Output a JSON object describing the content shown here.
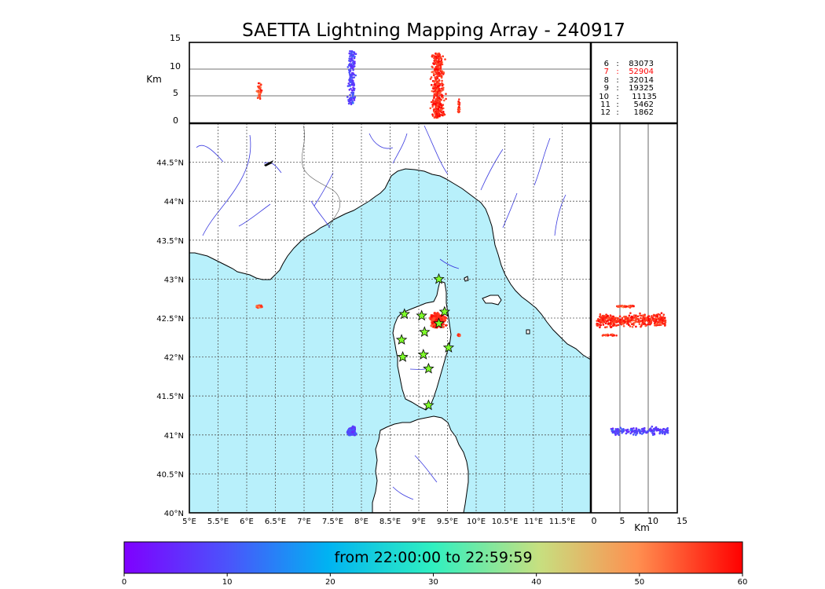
{
  "title": "SAETTA Lightning Mapping Array - 240917",
  "colors": {
    "sea": "#b8f0fb",
    "land": "#ffffff",
    "rivers": "#3a3adf",
    "borders": "#555555",
    "grid": "#555555",
    "star_fill": "#7fff2a",
    "highlight": "#ff0000"
  },
  "map": {
    "lon_range": [
      5.0,
      12.0
    ],
    "lat_range": [
      40.0,
      45.0
    ],
    "lon_ticks": [
      "5°E",
      "5.5°E",
      "6°E",
      "6.5°E",
      "7°E",
      "7.5°E",
      "8°E",
      "8.5°E",
      "9°E",
      "9.5°E",
      "10°E",
      "10.5°E",
      "11°E",
      "11.5°E"
    ],
    "lat_ticks": [
      "40°N",
      "40.5°N",
      "41°N",
      "41.5°N",
      "42°N",
      "42.5°N",
      "43°N",
      "43.5°N",
      "44°N",
      "44.5°N"
    ]
  },
  "altitude_panel": {
    "unit_label": "Km",
    "ticks": [
      "0",
      "5",
      "10",
      "15"
    ],
    "range": [
      0,
      15
    ]
  },
  "side_panel": {
    "unit_label": "Km",
    "ticks": [
      "0",
      "5",
      "10",
      "15"
    ]
  },
  "stats": [
    {
      "label": "6",
      "sep": ":",
      "value": "83073",
      "highlight": false
    },
    {
      "label": "7",
      "sep": ":",
      "value": "52904",
      "highlight": true
    },
    {
      "label": "8",
      "sep": ":",
      "value": "32014",
      "highlight": false
    },
    {
      "label": "9",
      "sep": ":",
      "value": "19325",
      "highlight": false
    },
    {
      "label": "10",
      "sep": ":",
      "value": "11135",
      "highlight": false
    },
    {
      "label": "11",
      "sep": ":",
      "value": "5462",
      "highlight": false
    },
    {
      "label": "12",
      "sep": ":",
      "value": "1862",
      "highlight": false
    }
  ],
  "stations": [
    {
      "lon": 9.35,
      "lat": 43.0
    },
    {
      "lon": 8.75,
      "lat": 42.55
    },
    {
      "lon": 9.05,
      "lat": 42.53
    },
    {
      "lon": 9.45,
      "lat": 42.58
    },
    {
      "lon": 9.35,
      "lat": 42.43
    },
    {
      "lon": 9.1,
      "lat": 42.32
    },
    {
      "lon": 8.7,
      "lat": 42.22
    },
    {
      "lon": 8.72,
      "lat": 42.0
    },
    {
      "lon": 9.08,
      "lat": 42.03
    },
    {
      "lon": 9.52,
      "lat": 42.12
    },
    {
      "lon": 9.17,
      "lat": 41.85
    },
    {
      "lon": 9.17,
      "lat": 41.38
    }
  ],
  "lightning_clusters": [
    {
      "lon": 6.22,
      "lat": 42.65,
      "spread_lon": 0.07,
      "spread_lat": 0.02,
      "alt": [
        4.5,
        7.5
      ],
      "time": 55,
      "n": 40
    },
    {
      "lon": 7.83,
      "lat": 41.05,
      "spread_lon": 0.1,
      "spread_lat": 0.08,
      "alt": [
        3.5,
        13.5
      ],
      "time": 8,
      "n": 160
    },
    {
      "lon": 9.33,
      "lat": 42.47,
      "spread_lon": 0.17,
      "spread_lat": 0.13,
      "alt": [
        1.0,
        13.0
      ],
      "time": 57,
      "n": 420
    },
    {
      "lon": 9.7,
      "lat": 42.28,
      "spread_lon": 0.03,
      "spread_lat": 0.02,
      "alt": [
        2.0,
        4.5
      ],
      "time": 56,
      "n": 25
    }
  ],
  "colorbar": {
    "label": "from 22:00:00 to 22:59:59",
    "range": [
      0,
      60
    ],
    "ticks": [
      "0",
      "10",
      "20",
      "30",
      "40",
      "50",
      "60"
    ]
  }
}
